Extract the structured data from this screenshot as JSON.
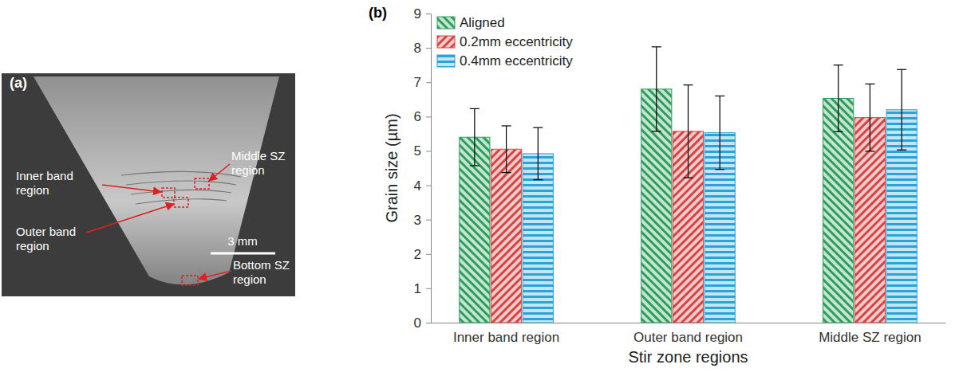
{
  "figure_a": {
    "panel_label": "(a)",
    "regions": [
      "Inner band region",
      "Middle SZ region",
      "Outer band region",
      "Bottom SZ region"
    ],
    "scale_bar": "3 mm"
  },
  "chart_data": {
    "type": "bar",
    "panel_label": "(b)",
    "x_label": "Stir zone regions",
    "y_label": "Grain size (µm)",
    "categories": [
      "Inner band region",
      "Outer band region",
      "Middle SZ region"
    ],
    "series": [
      {
        "name": "Aligned",
        "color": "#2f9e5c",
        "values": [
          5.4,
          6.8,
          6.53
        ],
        "errors": [
          0.83,
          1.23,
          0.97
        ]
      },
      {
        "name": "0.2mm eccentricity",
        "color": "#d64545",
        "values": [
          5.05,
          5.57,
          5.97
        ],
        "errors": [
          0.68,
          1.35,
          0.98
        ]
      },
      {
        "name": "0.4mm eccentricity",
        "color": "#2aa3d6",
        "values": [
          4.92,
          5.53,
          6.2
        ],
        "errors": [
          0.76,
          1.07,
          1.17
        ]
      }
    ],
    "ylim": [
      0,
      9
    ],
    "yticks": [
      0,
      1,
      2,
      3,
      4,
      5,
      6,
      7,
      8,
      9
    ],
    "grid": false,
    "legend": "upper left"
  }
}
